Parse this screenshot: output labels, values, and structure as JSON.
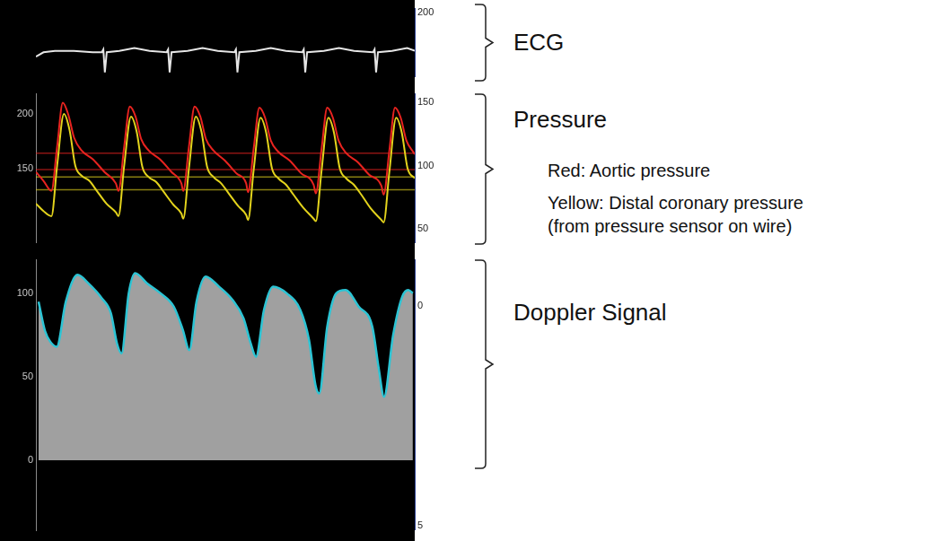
{
  "chart_data": [
    {
      "type": "line",
      "annotation": "ECG",
      "x": [
        0,
        2,
        5,
        10,
        15,
        17.4,
        17.8,
        18.2,
        18.7,
        22,
        26,
        30,
        34.5,
        34.9,
        35.3,
        35.8,
        40,
        44,
        48,
        52.4,
        52.8,
        53.2,
        53.7,
        58,
        62,
        66,
        70.3,
        70.7,
        71.1,
        71.6,
        76,
        80,
        84,
        89.0,
        89.4,
        89.8,
        90.3,
        94,
        98,
        100
      ],
      "series": [
        {
          "name": "ECG",
          "color": "#e6e6e6",
          "axis": "y2",
          "values": [
            169,
            172,
            173,
            173,
            172,
            172,
            174,
            158,
            172,
            173,
            175,
            173,
            172,
            174,
            158,
            172,
            173,
            175,
            173,
            172,
            174,
            158,
            172,
            173,
            175,
            173,
            172,
            174,
            158,
            172,
            173,
            175,
            173,
            172,
            174,
            158,
            172,
            173,
            175,
            173
          ]
        }
      ],
      "xlim": [
        0,
        100
      ],
      "xticks": [],
      "y2lim": [
        155,
        202.5
      ],
      "y2ticks": [
        200
      ],
      "grid": false
    },
    {
      "type": "line",
      "annotation": "Pressure",
      "annotation_notes": [
        "Red: Aortic pressure",
        "Yellow: Distal coronary pressure",
        "(from pressure sensor on wire)"
      ],
      "series": [
        {
          "name": "Aortic pressure",
          "color": "#e8231f",
          "axis": "y2",
          "x": [
            0,
            2,
            4.1,
            5.6,
            7.1,
            8.6,
            10.1,
            12.1,
            15.1,
            18.1,
            21.1,
            21.8,
            23.3,
            24.8,
            26.3,
            27.8,
            29.8,
            32.8,
            35.8,
            38.4,
            38.9,
            40.4,
            41.9,
            43.4,
            44.9,
            46.9,
            49.9,
            52.9,
            55.5,
            56.0,
            57.5,
            59.0,
            60.5,
            62.0,
            64.0,
            67.0,
            70.0,
            73.3,
            73.9,
            75.4,
            76.9,
            78.4,
            79.9,
            81.9,
            84.9,
            87.9,
            91.2,
            91.8,
            93.3,
            94.8,
            96.3,
            97.8,
            99.8,
            100
          ],
          "values": [
            95,
            88,
            80,
            115,
            150,
            140,
            122,
            112,
            105,
            95,
            86,
            80,
            115,
            147,
            139,
            121,
            112,
            105,
            95,
            86,
            80,
            115,
            147,
            139,
            121,
            112,
            104,
            94,
            86,
            79,
            114,
            146,
            138,
            120,
            111,
            104,
            94,
            85,
            78,
            113,
            146,
            138,
            120,
            110,
            103,
            93,
            84,
            77,
            112,
            146,
            138,
            120,
            110,
            109
          ],
          "mean_lines": [
            110,
            97
          ]
        },
        {
          "name": "Distal coronary pressure",
          "color": "#e3d31c",
          "axis": "y2",
          "x": [
            0,
            2,
            4.1,
            5.6,
            7.4,
            8.9,
            10.4,
            12.1,
            14.1,
            16.1,
            18.6,
            21.1,
            21.8,
            23.3,
            25.1,
            26.6,
            28.1,
            29.8,
            31.8,
            33.8,
            36.3,
            38.4,
            38.9,
            40.4,
            42.2,
            43.7,
            45.2,
            46.9,
            48.9,
            50.9,
            53.4,
            55.5,
            56.0,
            57.5,
            59.3,
            60.8,
            62.3,
            64.0,
            66.0,
            68.0,
            70.5,
            73.3,
            73.9,
            75.4,
            77.2,
            78.7,
            80.2,
            81.9,
            83.9,
            85.9,
            88.4,
            91.2,
            91.8,
            93.3,
            95.1,
            96.6,
            98.1,
            100
          ],
          "values": [
            70,
            64,
            60,
            100,
            141,
            128,
            100,
            92,
            88,
            80,
            70,
            63,
            60,
            100,
            139,
            127,
            99,
            91,
            87,
            79,
            69,
            62,
            58,
            98,
            139,
            127,
            99,
            91,
            86,
            78,
            68,
            61,
            57,
            97,
            138,
            126,
            98,
            90,
            85,
            77,
            67,
            58,
            56,
            96,
            138,
            126,
            98,
            90,
            85,
            77,
            66,
            57,
            55,
            95,
            138,
            126,
            98,
            90
          ],
          "mean_lines": [
            91,
            81
          ]
        }
      ],
      "xlim": [
        0,
        100
      ],
      "xticks": [],
      "ylim": [
        81,
        219
      ],
      "yticks": [
        150,
        200
      ],
      "y2lim": [
        39,
        157
      ],
      "y2ticks": [
        50,
        100,
        150
      ],
      "grid": false
    },
    {
      "type": "area",
      "annotation": "Doppler Signal",
      "x": [
        0.7,
        2.4,
        3.8,
        5.5,
        7.9,
        11.0,
        13.8,
        17.4,
        19.8,
        21.4,
        22.6,
        24.5,
        26.2,
        29.3,
        32.9,
        36.4,
        38.8,
        40.5,
        42.4,
        44.8,
        48.3,
        51.9,
        54.8,
        56.7,
        58.1,
        60.2,
        62.6,
        66.2,
        69.8,
        72.1,
        73.8,
        74.8,
        76.9,
        79.3,
        81.7,
        85.2,
        88.8,
        90.5,
        91.9,
        94.3,
        96.7,
        98.3,
        99.5
      ],
      "series": [
        {
          "name": "Doppler Signal",
          "color": "#2cc4d4",
          "values": [
            95,
            77.5,
            71,
            68,
            95,
            111,
            106,
            97,
            88,
            70,
            64,
            100,
            112,
            106,
            100,
            92,
            78,
            66,
            95,
            110,
            104,
            96,
            85,
            70,
            62,
            90,
            104,
            100,
            90,
            72,
            45,
            40,
            80,
            100,
            102,
            92,
            80,
            55,
            38,
            75,
            98,
            102,
            100
          ]
        }
      ],
      "xlim": [
        0,
        100
      ],
      "xticks": [],
      "ylim": [
        -41.5,
        120
      ],
      "yticks": [
        0,
        50,
        100
      ],
      "y2lim": [
        5.1,
        -1.05
      ],
      "y2ticks": [
        0,
        5
      ],
      "grid": false
    }
  ]
}
